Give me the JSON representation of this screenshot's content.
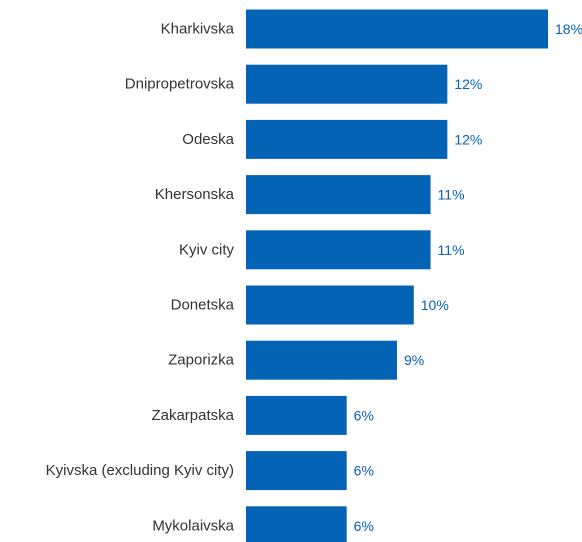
{
  "chart_data": {
    "type": "bar",
    "orientation": "horizontal",
    "categories": [
      "Kharkivska",
      "Dnipropetrovska",
      "Odeska",
      "Khersonska",
      "Kyiv city",
      "Donetska",
      "Zaporizka",
      "Zakarpatska",
      "Kyivska (excluding Kyiv city)",
      "Mykolaivska"
    ],
    "values": [
      18,
      12,
      12,
      11,
      11,
      10,
      9,
      6,
      6,
      6
    ],
    "value_labels": [
      "18%",
      "12%",
      "12%",
      "11%",
      "11%",
      "10%",
      "9%",
      "6%",
      "6%",
      "6%"
    ],
    "unit": "%",
    "xlim": [
      0,
      18
    ],
    "grid": false,
    "legend": "none",
    "title": "",
    "xlabel": "",
    "ylabel": ""
  },
  "colors": {
    "bar": "#0563B5",
    "value_label": "#0563B5",
    "category_label": "#333333"
  }
}
